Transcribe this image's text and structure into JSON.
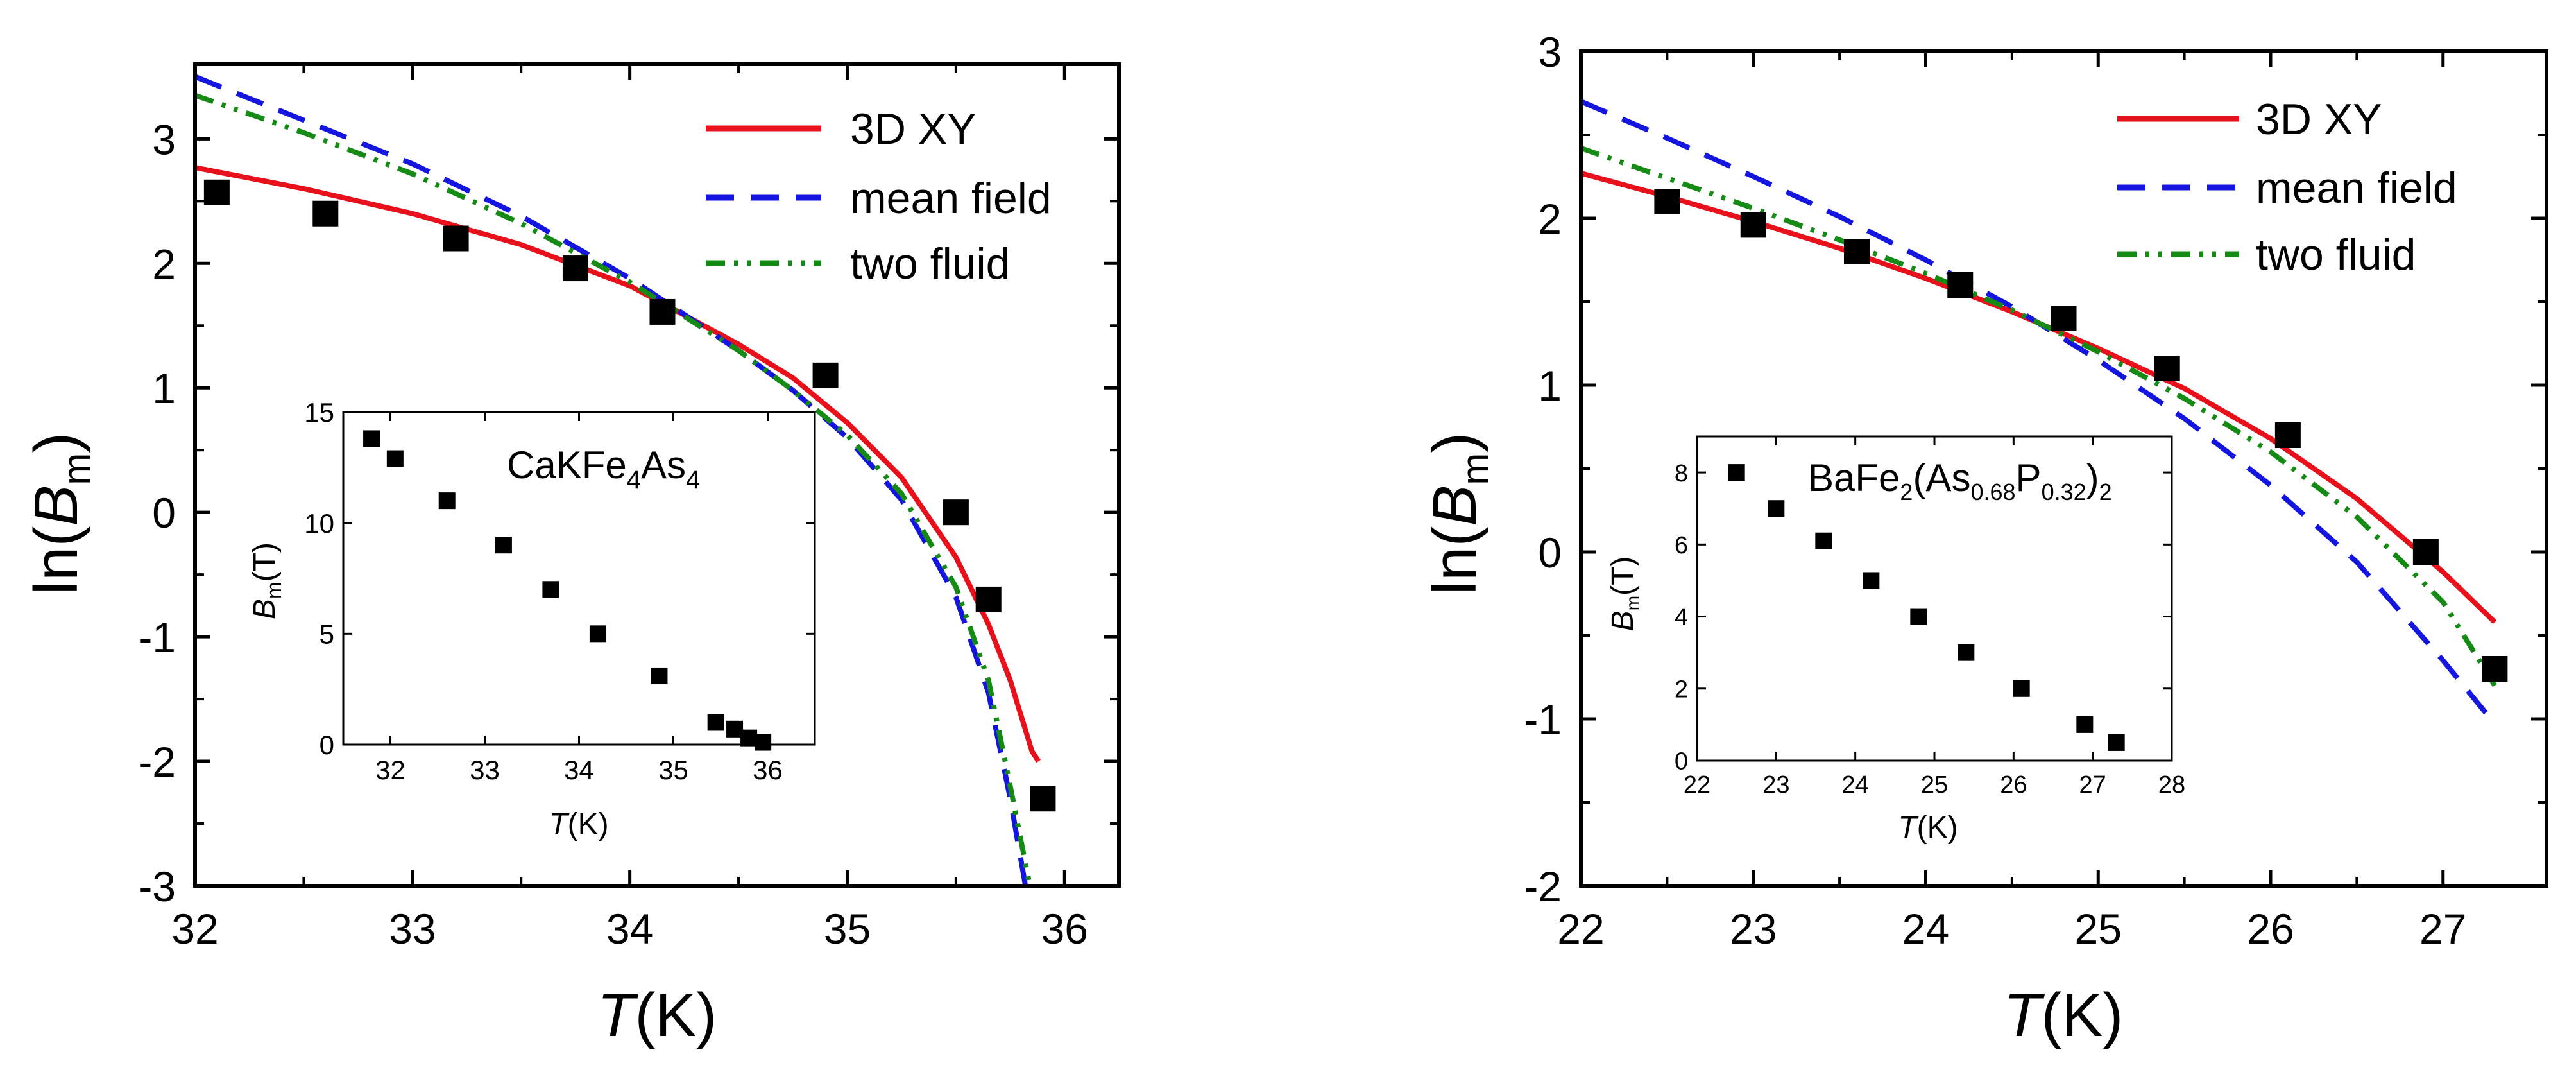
{
  "chart_data": [
    {
      "type": "scatter",
      "xlabel_var": "T",
      "xlabel_unit": "(K)",
      "ylabel_pre": "ln(",
      "ylabel_var": "B",
      "ylabel_sub": "m",
      "ylabel_post": ")",
      "xlim": [
        32,
        36.25
      ],
      "ylim": [
        -3,
        3.6
      ],
      "xticks": [
        32,
        33,
        34,
        35,
        36
      ],
      "yticks": [
        -3,
        -2,
        -1,
        0,
        1,
        2,
        3
      ],
      "xtick_labels": [
        "32",
        "33",
        "34",
        "35",
        "36"
      ],
      "ytick_labels": [
        "-3",
        "-2",
        "-1",
        "0",
        "1",
        "2",
        "3"
      ],
      "legend_placement": "top-right",
      "points": {
        "x": [
          32.1,
          32.6,
          33.2,
          33.75,
          34.15,
          34.9,
          35.5,
          35.65,
          35.9
        ],
        "y": [
          2.57,
          2.4,
          2.2,
          1.96,
          1.61,
          1.1,
          0.0,
          -0.7,
          -2.3
        ]
      },
      "series": [
        {
          "name": "3D XY",
          "style": "solid",
          "color": "#e8101a",
          "x": [
            32.0,
            32.5,
            33.0,
            33.5,
            34.0,
            34.5,
            34.75,
            35.0,
            35.25,
            35.5,
            35.65,
            35.75,
            35.85,
            35.88
          ],
          "y": [
            2.77,
            2.6,
            2.4,
            2.15,
            1.82,
            1.35,
            1.08,
            0.72,
            0.28,
            -0.36,
            -0.9,
            -1.35,
            -1.92,
            -2.0
          ]
        },
        {
          "name": "mean field",
          "style": "dashed",
          "color": "#1515e0",
          "x": [
            32.0,
            32.5,
            33.0,
            33.5,
            34.0,
            34.5,
            34.75,
            35.0,
            35.25,
            35.5,
            35.65,
            35.75,
            35.82
          ],
          "y": [
            3.5,
            3.15,
            2.8,
            2.38,
            1.88,
            1.3,
            0.98,
            0.6,
            0.1,
            -0.68,
            -1.45,
            -2.3,
            -3.0
          ]
        },
        {
          "name": "two fluid",
          "style": "dash-dot-dot",
          "color": "#158a15",
          "x": [
            32.0,
            32.5,
            33.0,
            33.5,
            34.0,
            34.5,
            34.75,
            35.0,
            35.25,
            35.5,
            35.65,
            35.75,
            35.84
          ],
          "y": [
            3.35,
            3.05,
            2.72,
            2.32,
            1.85,
            1.3,
            0.98,
            0.62,
            0.15,
            -0.6,
            -1.35,
            -2.2,
            -3.0
          ]
        }
      ],
      "inset": {
        "title_main": "CaKFe",
        "title_s1": "4",
        "title_mid": "As",
        "title_s2": "4",
        "xlabel_var": "T",
        "xlabel_unit": "(K)",
        "ylabel_var": "B",
        "ylabel_sub": "m",
        "ylabel_post": "(T)",
        "xlim": [
          31.5,
          36.5
        ],
        "ylim": [
          0,
          15
        ],
        "xticks": [
          32,
          33,
          34,
          35,
          36
        ],
        "yticks": [
          0,
          5,
          10,
          15
        ],
        "xtick_labels": [
          "32",
          "33",
          "34",
          "35",
          "36"
        ],
        "ytick_labels": [
          "0",
          "5",
          "10",
          "15"
        ],
        "points": {
          "x": [
            31.8,
            32.05,
            32.6,
            33.2,
            33.7,
            34.2,
            34.85,
            35.45,
            35.65,
            35.8,
            35.95
          ],
          "y": [
            13.8,
            12.9,
            11.0,
            9.0,
            7.0,
            5.0,
            3.1,
            1.0,
            0.7,
            0.3,
            0.1
          ]
        }
      }
    },
    {
      "type": "scatter",
      "xlabel_var": "T",
      "xlabel_unit": "(K)",
      "ylabel_pre": "ln(",
      "ylabel_var": "B",
      "ylabel_sub": "m",
      "ylabel_post": ")",
      "xlim": [
        22,
        27.6
      ],
      "ylim": [
        -2,
        3
      ],
      "xticks": [
        22,
        23,
        24,
        25,
        26,
        27
      ],
      "yticks": [
        -2,
        -1,
        0,
        1,
        2,
        3
      ],
      "xtick_labels": [
        "22",
        "23",
        "24",
        "25",
        "26",
        "27"
      ],
      "ytick_labels": [
        "-2",
        "-1",
        "0",
        "1",
        "2",
        "3"
      ],
      "legend_placement": "top-right",
      "points": {
        "x": [
          22.5,
          23.0,
          23.6,
          24.2,
          24.8,
          25.4,
          26.1,
          26.9,
          27.3
        ],
        "y": [
          2.1,
          1.96,
          1.8,
          1.6,
          1.4,
          1.1,
          0.7,
          0.0,
          -0.7
        ]
      },
      "series": [
        {
          "name": "3D XY",
          "style": "solid",
          "color": "#e8101a",
          "x": [
            22.0,
            22.5,
            23.0,
            23.5,
            24.0,
            24.5,
            25.0,
            25.5,
            26.0,
            26.5,
            27.0,
            27.3
          ],
          "y": [
            2.27,
            2.13,
            1.98,
            1.82,
            1.64,
            1.44,
            1.22,
            0.98,
            0.68,
            0.32,
            -0.12,
            -0.42
          ]
        },
        {
          "name": "mean field",
          "style": "dashed",
          "color": "#1515e0",
          "x": [
            22.0,
            22.5,
            23.0,
            23.5,
            24.0,
            24.5,
            25.0,
            25.5,
            26.0,
            26.5,
            27.0,
            27.3
          ],
          "y": [
            2.7,
            2.48,
            2.25,
            2.01,
            1.75,
            1.47,
            1.15,
            0.8,
            0.4,
            -0.06,
            -0.65,
            -1.03
          ]
        },
        {
          "name": "two fluid",
          "style": "dash-dot-dot",
          "color": "#158a15",
          "x": [
            22.0,
            22.5,
            23.0,
            23.5,
            24.0,
            24.5,
            25.0,
            25.5,
            26.0,
            26.5,
            27.0,
            27.3
          ],
          "y": [
            2.42,
            2.24,
            2.06,
            1.87,
            1.67,
            1.45,
            1.2,
            0.92,
            0.6,
            0.21,
            -0.3,
            -0.8
          ]
        }
      ],
      "inset": {
        "title_main": "BaFe",
        "title_s1": "2",
        "title_mid": "(As",
        "title_s2": "0.68",
        "title_mid2": "P",
        "title_s3": "0.32",
        "title_end": ")",
        "title_s4": "2",
        "xlabel_var": "T",
        "xlabel_unit": "(K)",
        "ylabel_var": "B",
        "ylabel_sub": "m",
        "ylabel_post": "(T)",
        "xlim": [
          22,
          28
        ],
        "ylim": [
          0,
          9
        ],
        "xticks": [
          22,
          23,
          24,
          25,
          26,
          27,
          28
        ],
        "yticks": [
          0,
          2,
          4,
          6,
          8
        ],
        "xtick_labels": [
          "22",
          "23",
          "24",
          "25",
          "26",
          "27",
          "28"
        ],
        "ytick_labels": [
          "0",
          "2",
          "4",
          "6",
          "8"
        ],
        "points": {
          "x": [
            22.5,
            23.0,
            23.6,
            24.2,
            24.8,
            25.4,
            26.1,
            26.9,
            27.3
          ],
          "y": [
            8.0,
            7.0,
            6.1,
            5.0,
            4.0,
            3.0,
            2.0,
            1.0,
            0.5
          ]
        }
      }
    }
  ]
}
